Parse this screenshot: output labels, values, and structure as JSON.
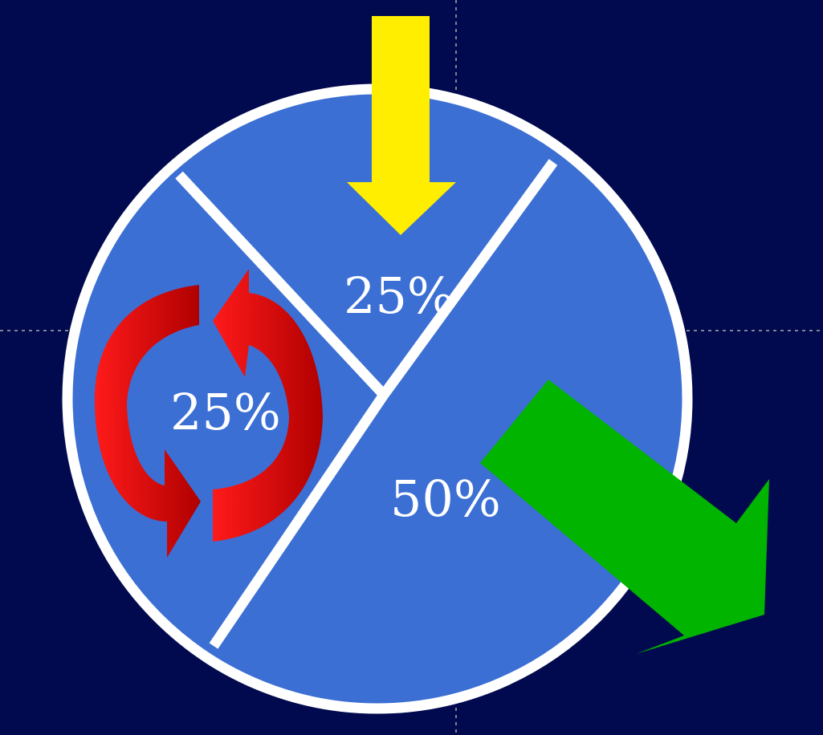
{
  "colors": {
    "background": "#010a4e",
    "pie_fill": "#3b6fd4",
    "pie_border": "#ffffff",
    "guide": "#a9a9a9",
    "inflow_arrow": "#ffee00",
    "outflow_arrow": "#00b400",
    "cycle_arrows": "#e10000",
    "label_text": "#ffffff"
  },
  "segments": [
    {
      "id": "top",
      "label": "25%",
      "share": 0.25,
      "icon": "down-arrow-icon"
    },
    {
      "id": "left",
      "label": "25%",
      "share": 0.25,
      "icon": "cycle-arrows-icon"
    },
    {
      "id": "right",
      "label": "50%",
      "share": 0.5,
      "icon": "outflow-arrow-icon"
    }
  ]
}
